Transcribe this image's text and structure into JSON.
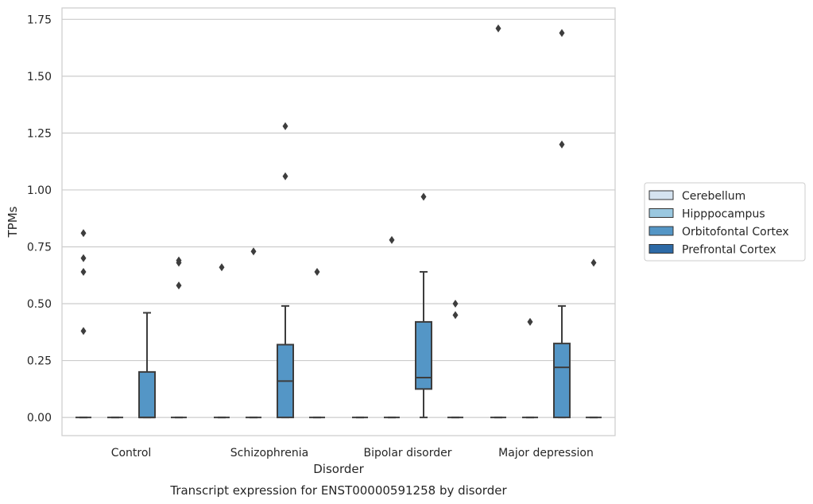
{
  "chart_data": {
    "type": "box",
    "title": "Transcript expression for ENST00000591258 by disorder",
    "xlabel": "Disorder",
    "ylabel": "TPMs",
    "ylim": [
      -0.08,
      1.8
    ],
    "yticks": [
      0.0,
      0.25,
      0.5,
      0.75,
      1.0,
      1.25,
      1.5,
      1.75
    ],
    "ytick_labels": [
      "0.00",
      "0.25",
      "0.50",
      "0.75",
      "1.00",
      "1.25",
      "1.50",
      "1.75"
    ],
    "categories": [
      "Control",
      "Schizophrenia",
      "Bipolar disorder",
      "Major depression"
    ],
    "grid": "horizontal",
    "legend_position": "right",
    "series": [
      {
        "name": "Cerebellum",
        "color": "#d5e3f0",
        "boxes": [
          {
            "q1": 0.0,
            "median": 0.0,
            "q3": 0.0,
            "whislo": 0.0,
            "whishi": 0.0,
            "fliers": [
              0.38,
              0.64,
              0.7,
              0.81
            ]
          },
          {
            "q1": 0.0,
            "median": 0.0,
            "q3": 0.0,
            "whislo": 0.0,
            "whishi": 0.0,
            "fliers": [
              0.66
            ]
          },
          {
            "q1": 0.0,
            "median": 0.0,
            "q3": 0.0,
            "whislo": 0.0,
            "whishi": 0.0,
            "fliers": []
          },
          {
            "q1": 0.0,
            "median": 0.0,
            "q3": 0.0,
            "whislo": 0.0,
            "whishi": 0.0,
            "fliers": [
              1.71
            ]
          }
        ]
      },
      {
        "name": "Hipppocampus",
        "color": "#9ac8e0",
        "boxes": [
          {
            "q1": 0.0,
            "median": 0.0,
            "q3": 0.0,
            "whislo": 0.0,
            "whishi": 0.0,
            "fliers": []
          },
          {
            "q1": 0.0,
            "median": 0.0,
            "q3": 0.0,
            "whislo": 0.0,
            "whishi": 0.0,
            "fliers": [
              0.73
            ]
          },
          {
            "q1": 0.0,
            "median": 0.0,
            "q3": 0.0,
            "whislo": 0.0,
            "whishi": 0.0,
            "fliers": [
              0.78
            ]
          },
          {
            "q1": 0.0,
            "median": 0.0,
            "q3": 0.0,
            "whislo": 0.0,
            "whishi": 0.0,
            "fliers": [
              0.42
            ]
          }
        ]
      },
      {
        "name": "Orbitofontal Cortex",
        "color": "#5496c6",
        "boxes": [
          {
            "q1": 0.0,
            "median": 0.0,
            "q3": 0.2,
            "whislo": 0.0,
            "whishi": 0.46,
            "fliers": []
          },
          {
            "q1": 0.0,
            "median": 0.16,
            "q3": 0.32,
            "whislo": 0.0,
            "whishi": 0.49,
            "fliers": [
              1.06,
              1.28
            ]
          },
          {
            "q1": 0.125,
            "median": 0.175,
            "q3": 0.42,
            "whislo": 0.0,
            "whishi": 0.64,
            "fliers": [
              0.97
            ]
          },
          {
            "q1": 0.0,
            "median": 0.22,
            "q3": 0.325,
            "whislo": 0.0,
            "whishi": 0.49,
            "fliers": [
              1.2,
              1.69
            ]
          }
        ]
      },
      {
        "name": "Prefrontal Cortex",
        "color": "#2d6aa6",
        "boxes": [
          {
            "q1": 0.0,
            "median": 0.0,
            "q3": 0.0,
            "whislo": 0.0,
            "whishi": 0.0,
            "fliers": [
              0.58,
              0.68,
              0.69
            ]
          },
          {
            "q1": 0.0,
            "median": 0.0,
            "q3": 0.0,
            "whislo": 0.0,
            "whishi": 0.0,
            "fliers": [
              0.64
            ]
          },
          {
            "q1": 0.0,
            "median": 0.0,
            "q3": 0.0,
            "whislo": 0.0,
            "whishi": 0.0,
            "fliers": [
              0.45,
              0.5
            ]
          },
          {
            "q1": 0.0,
            "median": 0.0,
            "q3": 0.0,
            "whislo": 0.0,
            "whishi": 0.0,
            "fliers": [
              0.68
            ]
          }
        ]
      }
    ]
  }
}
